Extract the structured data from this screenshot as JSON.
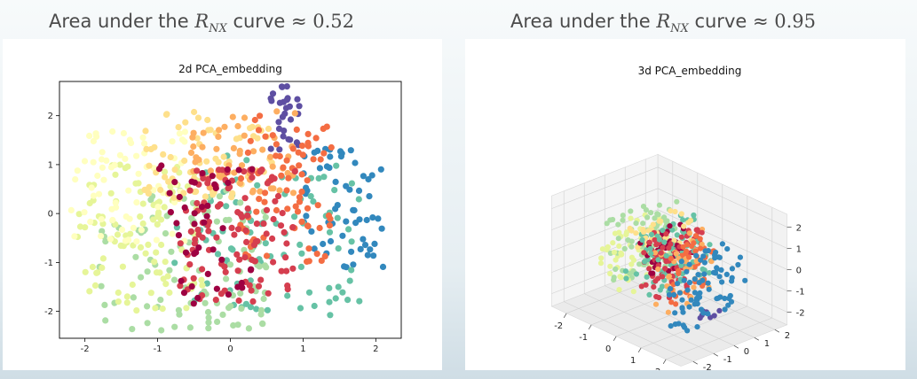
{
  "headings": {
    "left": {
      "prefix": "Area under the ",
      "sym": "R",
      "sub": "NX",
      "suffix": " curve ≈ ",
      "value": "0.52"
    },
    "right": {
      "prefix": "Area under the ",
      "sym": "R",
      "sub": "NX",
      "suffix": " curve ≈ ",
      "value": "0.95"
    }
  },
  "chart_data": [
    {
      "type": "scatter",
      "title": "2d PCA_embedding",
      "xlim": [
        -2.35,
        2.35
      ],
      "ylim": [
        -2.55,
        2.7
      ],
      "xticks": [
        "-2",
        "-1",
        "0",
        "1",
        "2"
      ],
      "xtick_values": [
        -2,
        -1,
        0,
        1,
        2
      ],
      "yticks": [
        "2",
        "1",
        "0",
        "-1",
        "-2"
      ],
      "ytick_values": [
        2,
        1,
        0,
        -1,
        -2
      ],
      "colormap": [
        "#9e0142",
        "#d53e4f",
        "#f46d43",
        "#fdae61",
        "#fee08b",
        "#ffffbf",
        "#e6f598",
        "#abdda4",
        "#66c2a5",
        "#3288bd",
        "#5e4fa2"
      ],
      "clusters": [
        {
          "color_index": 10,
          "x": [
            0.55,
            0.95
          ],
          "y": [
            1.3,
            2.65
          ],
          "n": 28
        },
        {
          "color_index": 9,
          "x": [
            0.9,
            2.1
          ],
          "y": [
            -1.1,
            1.5
          ],
          "n": 60
        },
        {
          "color_index": 8,
          "x": [
            -0.8,
            1.8
          ],
          "y": [
            -2.1,
            1.2
          ],
          "n": 90
        },
        {
          "color_index": 7,
          "x": [
            -1.8,
            0.5
          ],
          "y": [
            -2.4,
            0.5
          ],
          "n": 110
        },
        {
          "color_index": 6,
          "x": [
            -2.1,
            -0.3
          ],
          "y": [
            -2.0,
            1.0
          ],
          "n": 100
        },
        {
          "color_index": 5,
          "x": [
            -2.2,
            -0.6
          ],
          "y": [
            -0.6,
            1.7
          ],
          "n": 70
        },
        {
          "color_index": 4,
          "x": [
            -1.2,
            0.6
          ],
          "y": [
            0.3,
            2.1
          ],
          "n": 70
        },
        {
          "color_index": 3,
          "x": [
            -0.6,
            0.9
          ],
          "y": [
            0.4,
            2.1
          ],
          "n": 55
        },
        {
          "color_index": 2,
          "x": [
            0.1,
            1.4
          ],
          "y": [
            -1.0,
            2.0
          ],
          "n": 80
        },
        {
          "color_index": 1,
          "x": [
            -0.7,
            0.9
          ],
          "y": [
            -1.8,
            0.9
          ],
          "n": 110
        },
        {
          "color_index": 0,
          "x": [
            -1.0,
            0.3
          ],
          "y": [
            -1.9,
            1.0
          ],
          "n": 45
        }
      ]
    },
    {
      "type": "scatter",
      "title": "3d PCA_embedding",
      "xticks": [
        "-2",
        "-1",
        "0",
        "1",
        "2"
      ],
      "yticks": [
        "2",
        "1",
        "0",
        "-1",
        "-2"
      ],
      "zticks": [
        "2",
        "1",
        "0",
        "-1",
        "-2"
      ],
      "clusters": [
        {
          "color_index": 7,
          "x": [
            -1.5,
            -0.5
          ],
          "y": [
            -1.5,
            1.5
          ],
          "z": [
            -1.5,
            1.8
          ],
          "n": 90
        },
        {
          "color_index": 6,
          "x": [
            -1.8,
            -0.9
          ],
          "y": [
            -1.5,
            1.5
          ],
          "z": [
            -1.8,
            1.0
          ],
          "n": 60
        },
        {
          "color_index": 8,
          "x": [
            -0.6,
            0.6
          ],
          "y": [
            -1.5,
            1.5
          ],
          "z": [
            -1.2,
            1.5
          ],
          "n": 90
        },
        {
          "color_index": 0,
          "x": [
            -0.4,
            0.2
          ],
          "y": [
            -1.0,
            1.0
          ],
          "z": [
            -0.8,
            1.6
          ],
          "n": 35
        },
        {
          "color_index": 1,
          "x": [
            -0.3,
            0.6
          ],
          "y": [
            -1.2,
            1.2
          ],
          "z": [
            -1.4,
            1.5
          ],
          "n": 80
        },
        {
          "color_index": 4,
          "x": [
            -0.8,
            0.2
          ],
          "y": [
            -1.2,
            1.0
          ],
          "z": [
            0.5,
            1.9
          ],
          "n": 30
        },
        {
          "color_index": 3,
          "x": [
            0.3,
            1.0
          ],
          "y": [
            -1.2,
            1.2
          ],
          "z": [
            -1.9,
            1.5
          ],
          "n": 40
        },
        {
          "color_index": 2,
          "x": [
            0.5,
            1.1
          ],
          "y": [
            -1.0,
            1.0
          ],
          "z": [
            -1.8,
            1.4
          ],
          "n": 35
        },
        {
          "color_index": 9,
          "x": [
            1.1,
            1.9
          ],
          "y": [
            -1.5,
            1.5
          ],
          "z": [
            -1.9,
            1.2
          ],
          "n": 80
        },
        {
          "color_index": 10,
          "x": [
            1.2,
            1.8
          ],
          "y": [
            -0.5,
            0.5
          ],
          "z": [
            -2.0,
            -1.4
          ],
          "n": 8
        }
      ]
    }
  ]
}
